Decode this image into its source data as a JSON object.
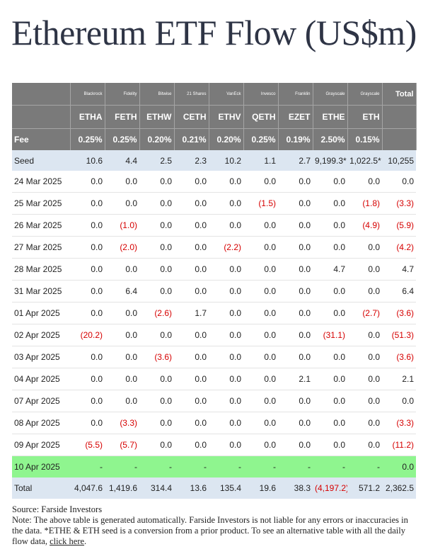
{
  "title": "Ethereum ETF Flow (US$m)",
  "table": {
    "issuers": [
      "Blackrock",
      "Fidelity",
      "Bitwise",
      "21 Shares",
      "VanEck",
      "Invesco",
      "Franklin",
      "Grayscale",
      "Grayscale"
    ],
    "total_label": "Total",
    "tickers": [
      "ETHA",
      "FETH",
      "ETHW",
      "CETH",
      "ETHV",
      "QETH",
      "EZET",
      "ETHE",
      "ETH"
    ],
    "fee_label": "Fee",
    "fees": [
      "0.25%",
      "0.25%",
      "0.20%",
      "0.21%",
      "0.20%",
      "0.25%",
      "0.19%",
      "2.50%",
      "0.15%"
    ],
    "seed": {
      "label": "Seed",
      "values": [
        "10.6",
        "4.4",
        "2.5",
        "2.3",
        "10.2",
        "1.1",
        "2.7",
        "9,199.3*",
        "1,022.5*",
        "10,255"
      ]
    },
    "rows": [
      {
        "date": "24 Mar 2025",
        "values": [
          "0.0",
          "0.0",
          "0.0",
          "0.0",
          "0.0",
          "0.0",
          "0.0",
          "0.0",
          "0.0",
          "0.0"
        ]
      },
      {
        "date": "25 Mar 2025",
        "values": [
          "0.0",
          "0.0",
          "0.0",
          "0.0",
          "0.0",
          "(1.5)",
          "0.0",
          "0.0",
          "(1.8)",
          "(3.3)"
        ]
      },
      {
        "date": "26 Mar 2025",
        "values": [
          "0.0",
          "(1.0)",
          "0.0",
          "0.0",
          "0.0",
          "0.0",
          "0.0",
          "0.0",
          "(4.9)",
          "(5.9)"
        ]
      },
      {
        "date": "27 Mar 2025",
        "values": [
          "0.0",
          "(2.0)",
          "0.0",
          "0.0",
          "(2.2)",
          "0.0",
          "0.0",
          "0.0",
          "0.0",
          "(4.2)"
        ]
      },
      {
        "date": "28 Mar 2025",
        "values": [
          "0.0",
          "0.0",
          "0.0",
          "0.0",
          "0.0",
          "0.0",
          "0.0",
          "4.7",
          "0.0",
          "4.7"
        ]
      },
      {
        "date": "31 Mar 2025",
        "values": [
          "0.0",
          "6.4",
          "0.0",
          "0.0",
          "0.0",
          "0.0",
          "0.0",
          "0.0",
          "0.0",
          "6.4"
        ]
      },
      {
        "date": "01 Apr 2025",
        "values": [
          "0.0",
          "0.0",
          "(2.6)",
          "1.7",
          "0.0",
          "0.0",
          "0.0",
          "0.0",
          "(2.7)",
          "(3.6)"
        ]
      },
      {
        "date": "02 Apr 2025",
        "values": [
          "(20.2)",
          "0.0",
          "0.0",
          "0.0",
          "0.0",
          "0.0",
          "0.0",
          "(31.1)",
          "0.0",
          "(51.3)"
        ]
      },
      {
        "date": "03 Apr 2025",
        "values": [
          "0.0",
          "0.0",
          "(3.6)",
          "0.0",
          "0.0",
          "0.0",
          "0.0",
          "0.0",
          "0.0",
          "(3.6)"
        ]
      },
      {
        "date": "04 Apr 2025",
        "values": [
          "0.0",
          "0.0",
          "0.0",
          "0.0",
          "0.0",
          "0.0",
          "2.1",
          "0.0",
          "0.0",
          "2.1"
        ]
      },
      {
        "date": "07 Apr 2025",
        "values": [
          "0.0",
          "0.0",
          "0.0",
          "0.0",
          "0.0",
          "0.0",
          "0.0",
          "0.0",
          "0.0",
          "0.0"
        ]
      },
      {
        "date": "08 Apr 2025",
        "values": [
          "0.0",
          "(3.3)",
          "0.0",
          "0.0",
          "0.0",
          "0.0",
          "0.0",
          "0.0",
          "0.0",
          "(3.3)"
        ]
      },
      {
        "date": "09 Apr 2025",
        "values": [
          "(5.5)",
          "(5.7)",
          "0.0",
          "0.0",
          "0.0",
          "0.0",
          "0.0",
          "0.0",
          "0.0",
          "(11.2)"
        ]
      }
    ],
    "highlight": {
      "date": "10 Apr 2025",
      "values": [
        "-",
        "-",
        "-",
        "-",
        "-",
        "-",
        "-",
        "-",
        "-",
        "0.0"
      ]
    },
    "total": {
      "label": "Total",
      "values": [
        "4,047.6",
        "1,419.6",
        "314.4",
        "13.6",
        "135.4",
        "19.6",
        "38.3",
        "(4,197.2)",
        "571.2",
        "2,362.5"
      ]
    },
    "colors": {
      "header_bg": "#7a7a7a",
      "seed_bg": "#dce6f1",
      "highlight_bg": "#8ff58f",
      "negative": "#d60000"
    }
  },
  "notes": {
    "source": "Source: Farside Investors",
    "note": "Note: The above table is generated automatically. Farside Investors is not liable for any errors or inaccuracies in the data. *ETHE & ETH seed is a conversion from a prior product.  To see an alternative table with all the daily flow data,",
    "link": "click here",
    "end": "."
  }
}
